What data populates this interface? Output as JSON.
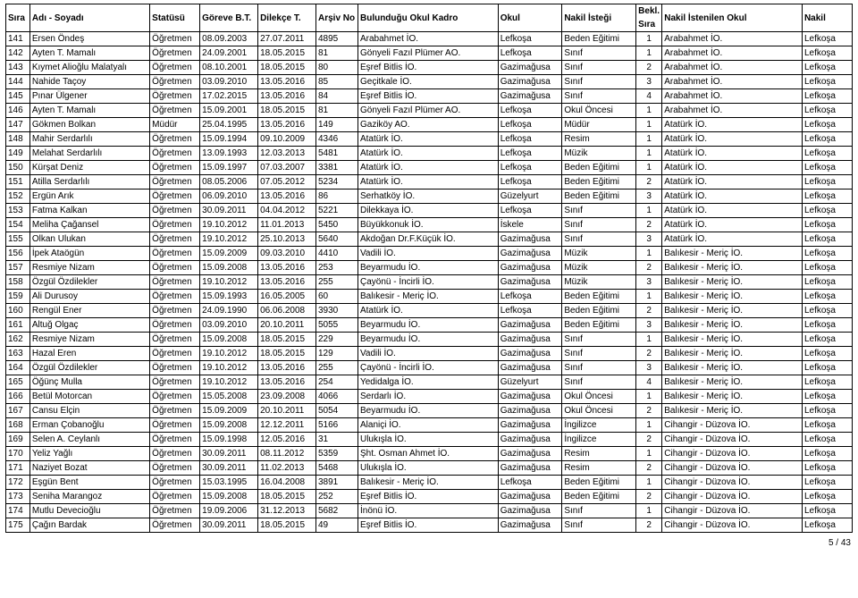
{
  "columns": {
    "sira": "Sıra",
    "adi": "Adı - Soyadı",
    "statusu": "Statüsü",
    "gorev": "Göreve B.T.",
    "dilekce": "Dilekçe T.",
    "arsiv": "Arşiv No",
    "kadro": "Bulunduğu Okul Kadro",
    "okul": "Okul",
    "istegi": "Nakil İsteği",
    "bekl_top": "Bekl.",
    "bekl_bot": "Sıra",
    "istok": "Nakil İstenilen Okul",
    "nakil": "Nakil"
  },
  "rows": [
    [
      "141",
      "Ersen Öndeş",
      "Öğretmen",
      "08.09.2003",
      "27.07.2011",
      "4895",
      "Arabahmet İO.",
      "Lefkoşa",
      "Beden Eğitimi",
      "1",
      "Arabahmet İO.",
      "Lefkoşa"
    ],
    [
      "142",
      "Ayten T. Mamalı",
      "Öğretmen",
      "24.09.2001",
      "18.05.2015",
      "81",
      "Gönyeli Fazıl Plümer AO.",
      "Lefkoşa",
      "Sınıf",
      "1",
      "Arabahmet İO.",
      "Lefkoşa"
    ],
    [
      "143",
      "Kıymet Alioğlu Malatyalı",
      "Öğretmen",
      "08.10.2001",
      "18.05.2015",
      "80",
      "Eşref Bitlis İO.",
      "Gazimağusa",
      "Sınıf",
      "2",
      "Arabahmet İO.",
      "Lefkoşa"
    ],
    [
      "144",
      "Nahide Taçoy",
      "Öğretmen",
      "03.09.2010",
      "13.05.2016",
      "85",
      "Geçitkale İO.",
      "Gazimağusa",
      "Sınıf",
      "3",
      "Arabahmet İO.",
      "Lefkoşa"
    ],
    [
      "145",
      "Pınar Ülgener",
      "Öğretmen",
      "17.02.2015",
      "13.05.2016",
      "84",
      "Eşref Bitlis İO.",
      "Gazimağusa",
      "Sınıf",
      "4",
      "Arabahmet İO.",
      "Lefkoşa"
    ],
    [
      "146",
      "Ayten T. Mamalı",
      "Öğretmen",
      "15.09.2001",
      "18.05.2015",
      "81",
      "Gönyeli Fazıl Plümer AO.",
      "Lefkoşa",
      "Okul Öncesi",
      "1",
      "Arabahmet İO.",
      "Lefkoşa"
    ],
    [
      "147",
      "Gökmen Bolkan",
      "Müdür",
      "25.04.1995",
      "13.05.2016",
      "149",
      "Gaziköy AO.",
      "Lefkoşa",
      "Müdür",
      "1",
      "Atatürk İO.",
      "Lefkoşa"
    ],
    [
      "148",
      "Mahir Serdarlılı",
      "Öğretmen",
      "15.09.1994",
      "09.10.2009",
      "4346",
      "Atatürk İO.",
      "Lefkoşa",
      "Resim",
      "1",
      "Atatürk İO.",
      "Lefkoşa"
    ],
    [
      "149",
      "Melahat Serdarlılı",
      "Öğretmen",
      "13.09.1993",
      "12.03.2013",
      "5481",
      "Atatürk İO.",
      "Lefkoşa",
      "Müzik",
      "1",
      "Atatürk İO.",
      "Lefkoşa"
    ],
    [
      "150",
      "Kürşat Deniz",
      "Öğretmen",
      "15.09.1997",
      "07.03.2007",
      "3381",
      "Atatürk İO.",
      "Lefkoşa",
      "Beden Eğitimi",
      "1",
      "Atatürk İO.",
      "Lefkoşa"
    ],
    [
      "151",
      "Atilla Serdarlılı",
      "Öğretmen",
      "08.05.2006",
      "07.05.2012",
      "5234",
      "Atatürk İO.",
      "Lefkoşa",
      "Beden Eğitimi",
      "2",
      "Atatürk İO.",
      "Lefkoşa"
    ],
    [
      "152",
      "Ergün Arık",
      "Öğretmen",
      "06.09.2010",
      "13.05.2016",
      "86",
      "Serhatköy İO.",
      "Güzelyurt",
      "Beden Eğitimi",
      "3",
      "Atatürk İO.",
      "Lefkoşa"
    ],
    [
      "153",
      "Fatma Kalkan",
      "Öğretmen",
      "30.09.2011",
      "04.04.2012",
      "5221",
      "Dilekkaya İO.",
      "Lefkoşa",
      "Sınıf",
      "1",
      "Atatürk İO.",
      "Lefkoşa"
    ],
    [
      "154",
      "Meliha Çağansel",
      "Öğretmen",
      "19.10.2012",
      "11.01.2013",
      "5450",
      "Büyükkonuk İO.",
      "İskele",
      "Sınıf",
      "2",
      "Atatürk İO.",
      "Lefkoşa"
    ],
    [
      "155",
      "Olkan Ulukan",
      "Öğretmen",
      "19.10.2012",
      "25.10.2013",
      "5640",
      "Akdoğan Dr.F.Küçük İO.",
      "Gazimağusa",
      "Sınıf",
      "3",
      "Atatürk İO.",
      "Lefkoşa"
    ],
    [
      "156",
      "İpek Ataögün",
      "Öğretmen",
      "15.09.2009",
      "09.03.2010",
      "4410",
      "Vadili İO.",
      "Gazimağusa",
      "Müzik",
      "1",
      "Balıkesir - Meriç İO.",
      "Lefkoşa"
    ],
    [
      "157",
      "Resmiye Nizam",
      "Öğretmen",
      "15.09.2008",
      "13.05.2016",
      "253",
      "Beyarmudu İO.",
      "Gazimağusa",
      "Müzik",
      "2",
      "Balıkesir - Meriç İO.",
      "Lefkoşa"
    ],
    [
      "158",
      "Özgül Özdilekler",
      "Öğretmen",
      "19.10.2012",
      "13.05.2016",
      "255",
      "Çayönü - İncirli İO.",
      "Gazimağusa",
      "Müzik",
      "3",
      "Balıkesir - Meriç İO.",
      "Lefkoşa"
    ],
    [
      "159",
      "Ali Durusoy",
      "Öğretmen",
      "15.09.1993",
      "16.05.2005",
      "60",
      "Balıkesir - Meriç İO.",
      "Lefkoşa",
      "Beden Eğitimi",
      "1",
      "Balıkesir - Meriç İO.",
      "Lefkoşa"
    ],
    [
      "160",
      "Rengül Ener",
      "Öğretmen",
      "24.09.1990",
      "06.06.2008",
      "3930",
      "Atatürk İO.",
      "Lefkoşa",
      "Beden Eğitimi",
      "2",
      "Balıkesir - Meriç İO.",
      "Lefkoşa"
    ],
    [
      "161",
      "Altuğ Olgaç",
      "Öğretmen",
      "03.09.2010",
      "20.10.2011",
      "5055",
      "Beyarmudu İO.",
      "Gazimağusa",
      "Beden Eğitimi",
      "3",
      "Balıkesir - Meriç İO.",
      "Lefkoşa"
    ],
    [
      "162",
      "Resmiye Nizam",
      "Öğretmen",
      "15.09.2008",
      "18.05.2015",
      "229",
      "Beyarmudu İO.",
      "Gazimağusa",
      "Sınıf",
      "1",
      "Balıkesir - Meriç İO.",
      "Lefkoşa"
    ],
    [
      "163",
      "Hazal Eren",
      "Öğretmen",
      "19.10.2012",
      "18.05.2015",
      "129",
      "Vadili İO.",
      "Gazimağusa",
      "Sınıf",
      "2",
      "Balıkesir - Meriç İO.",
      "Lefkoşa"
    ],
    [
      "164",
      "Özgül Özdilekler",
      "Öğretmen",
      "19.10.2012",
      "13.05.2016",
      "255",
      "Çayönü - İncirli İO.",
      "Gazimağusa",
      "Sınıf",
      "3",
      "Balıkesir - Meriç İO.",
      "Lefkoşa"
    ],
    [
      "165",
      "Öğünç Mulla",
      "Öğretmen",
      "19.10.2012",
      "13.05.2016",
      "254",
      "Yedidalga İO.",
      "Güzelyurt",
      "Sınıf",
      "4",
      "Balıkesir - Meriç İO.",
      "Lefkoşa"
    ],
    [
      "166",
      "Betül Motorcan",
      "Öğretmen",
      "15.05.2008",
      "23.09.2008",
      "4066",
      "Serdarlı İO.",
      "Gazimağusa",
      "Okul Öncesi",
      "1",
      "Balıkesir - Meriç İO.",
      "Lefkoşa"
    ],
    [
      "167",
      "Cansu Elçin",
      "Öğretmen",
      "15.09.2009",
      "20.10.2011",
      "5054",
      "Beyarmudu İO.",
      "Gazimağusa",
      "Okul Öncesi",
      "2",
      "Balıkesir - Meriç İO.",
      "Lefkoşa"
    ],
    [
      "168",
      "Erman Çobanoğlu",
      "Öğretmen",
      "15.09.2008",
      "12.12.2011",
      "5166",
      "Alaniçi İO.",
      "Gazimağusa",
      "İngilizce",
      "1",
      "Cihangir - Düzova İO.",
      "Lefkoşa"
    ],
    [
      "169",
      "Selen A. Ceylanlı",
      "Öğretmen",
      "15.09.1998",
      "12.05.2016",
      "31",
      "Ulukışla İO.",
      "Gazimağusa",
      "İngilizce",
      "2",
      "Cihangir - Düzova İO.",
      "Lefkoşa"
    ],
    [
      "170",
      "Yeliz Yağlı",
      "Öğretmen",
      "30.09.2011",
      "08.11.2012",
      "5359",
      "Şht. Osman Ahmet İO.",
      "Gazimağusa",
      "Resim",
      "1",
      "Cihangir - Düzova İO.",
      "Lefkoşa"
    ],
    [
      "171",
      "Naziyet Bozat",
      "Öğretmen",
      "30.09.2011",
      "11.02.2013",
      "5468",
      "Ulukışla İO.",
      "Gazimağusa",
      "Resim",
      "2",
      "Cihangir - Düzova İO.",
      "Lefkoşa"
    ],
    [
      "172",
      "Eşgün Bent",
      "Öğretmen",
      "15.03.1995",
      "16.04.2008",
      "3891",
      "Balıkesir - Meriç İO.",
      "Lefkoşa",
      "Beden Eğitimi",
      "1",
      "Cihangir - Düzova İO.",
      "Lefkoşa"
    ],
    [
      "173",
      "Seniha Marangoz",
      "Öğretmen",
      "15.09.2008",
      "18.05.2015",
      "252",
      "Eşref Bitlis İO.",
      "Gazimağusa",
      "Beden Eğitimi",
      "2",
      "Cihangir - Düzova İO.",
      "Lefkoşa"
    ],
    [
      "174",
      "Mutlu Devecioğlu",
      "Öğretmen",
      "19.09.2006",
      "31.12.2013",
      "5682",
      "İnönü İO.",
      "Gazimağusa",
      "Sınıf",
      "1",
      "Cihangir - Düzova İO.",
      "Lefkoşa"
    ],
    [
      "175",
      "Çağın Bardak",
      "Öğretmen",
      "30.09.2011",
      "18.05.2015",
      "49",
      "Eşref Bitlis İO.",
      "Gazimağusa",
      "Sınıf",
      "2",
      "Cihangir - Düzova İO.",
      "Lefkoşa"
    ]
  ],
  "footer": "5 / 43"
}
